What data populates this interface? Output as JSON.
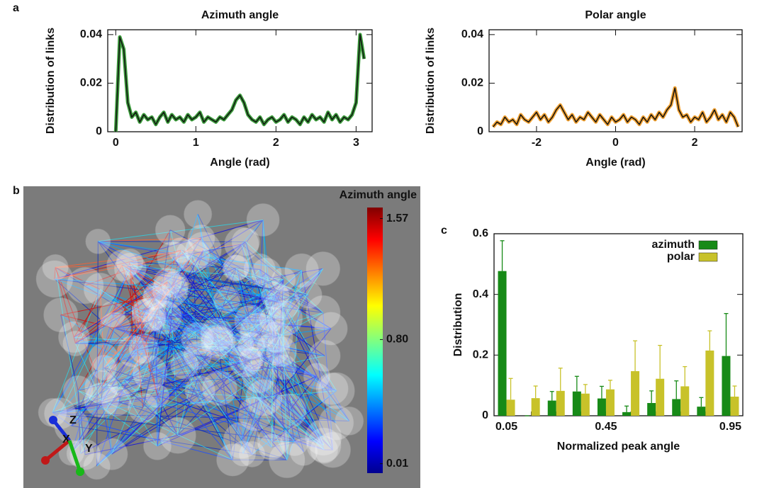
{
  "figure": {
    "panel_labels": [
      "a",
      "b",
      "c"
    ]
  },
  "render": {
    "colorbar": {
      "title": "Azimuth angle",
      "clim": [
        -0.05,
        1.64
      ],
      "ticks": [
        1.57,
        {
          "value": 0.8,
          "label": "0.80"
        },
        0.01
      ]
    },
    "triad_labels": [
      "Z",
      "X",
      "Y"
    ]
  },
  "chart_data": [
    {
      "type": "line",
      "title": "Azimuth angle",
      "x_label": "Angle (rad)",
      "y_label": "Distribution of links",
      "x": [
        0,
        0.05,
        0.1,
        0.15,
        0.2,
        0.25,
        0.3,
        0.35,
        0.4,
        0.45,
        0.5,
        0.55,
        0.6,
        0.65,
        0.7,
        0.75,
        0.8,
        0.85,
        0.9,
        0.95,
        1,
        1.05,
        1.1,
        1.15,
        1.2,
        1.25,
        1.3,
        1.35,
        1.4,
        1.45,
        1.5,
        1.55,
        1.6,
        1.65,
        1.7,
        1.75,
        1.8,
        1.85,
        1.9,
        1.95,
        2,
        2.05,
        2.1,
        2.15,
        2.2,
        2.25,
        2.3,
        2.35,
        2.4,
        2.45,
        2.5,
        2.55,
        2.6,
        2.65,
        2.7,
        2.75,
        2.8,
        2.85,
        2.9,
        2.95,
        3,
        3.05,
        3.1
      ],
      "series": [
        {
          "color": "#111111",
          "band_color": "#3a9a3a",
          "values": [
            0,
            0.039,
            0.034,
            0.012,
            0.006,
            0.008,
            0.004,
            0.007,
            0.005,
            0.006,
            0.003,
            0.006,
            0.008,
            0.004,
            0.007,
            0.005,
            0.006,
            0.004,
            0.007,
            0.005,
            0.006,
            0.008,
            0.004,
            0.006,
            0.005,
            0.004,
            0.006,
            0.005,
            0.007,
            0.009,
            0.013,
            0.015,
            0.012,
            0.007,
            0.005,
            0.004,
            0.006,
            0.003,
            0.005,
            0.006,
            0.004,
            0.005,
            0.007,
            0.004,
            0.006,
            0.005,
            0.003,
            0.006,
            0.004,
            0.007,
            0.005,
            0.006,
            0.004,
            0.008,
            0.005,
            0.007,
            0.004,
            0.006,
            0.005,
            0.007,
            0.012,
            0.04,
            0.03
          ]
        }
      ],
      "xlim": [
        -0.1,
        3.2
      ],
      "xticks": [
        0,
        1,
        2,
        3
      ],
      "ylim": [
        0,
        0.042
      ],
      "yticks": [
        0,
        0.02,
        0.04
      ]
    },
    {
      "type": "line",
      "title": "Polar angle",
      "x_label": "Angle (rad)",
      "y_label": "Distribution of links",
      "x": [
        -3.1,
        -3,
        -2.9,
        -2.8,
        -2.7,
        -2.6,
        -2.5,
        -2.4,
        -2.3,
        -2.2,
        -2.1,
        -2,
        -1.9,
        -1.8,
        -1.7,
        -1.6,
        -1.5,
        -1.4,
        -1.3,
        -1.2,
        -1.1,
        -1,
        -0.9,
        -0.8,
        -0.7,
        -0.6,
        -0.5,
        -0.4,
        -0.3,
        -0.2,
        -0.1,
        0,
        0.1,
        0.2,
        0.3,
        0.4,
        0.5,
        0.6,
        0.7,
        0.8,
        0.9,
        1,
        1.1,
        1.2,
        1.3,
        1.4,
        1.5,
        1.6,
        1.7,
        1.8,
        1.9,
        2,
        2.1,
        2.2,
        2.3,
        2.4,
        2.5,
        2.6,
        2.7,
        2.8,
        2.9,
        3,
        3.1
      ],
      "series": [
        {
          "color": "#111111",
          "band_color": "#f0a030",
          "values": [
            0.002,
            0.004,
            0.003,
            0.006,
            0.004,
            0.005,
            0.003,
            0.007,
            0.005,
            0.004,
            0.006,
            0.008,
            0.005,
            0.007,
            0.004,
            0.006,
            0.009,
            0.011,
            0.008,
            0.005,
            0.007,
            0.004,
            0.006,
            0.005,
            0.008,
            0.006,
            0.004,
            0.007,
            0.005,
            0.003,
            0.006,
            0.004,
            0.005,
            0.007,
            0.004,
            0.006,
            0.005,
            0.003,
            0.006,
            0.004,
            0.007,
            0.005,
            0.008,
            0.006,
            0.009,
            0.011,
            0.018,
            0.009,
            0.006,
            0.007,
            0.004,
            0.006,
            0.005,
            0.008,
            0.004,
            0.006,
            0.009,
            0.005,
            0.007,
            0.004,
            0.008,
            0.006,
            0.002
          ]
        }
      ],
      "xlim": [
        -3.2,
        3.2
      ],
      "xticks": [
        -2,
        0,
        2
      ],
      "ylim": [
        0,
        0.042
      ],
      "yticks": [
        0,
        0.02,
        0.04
      ]
    },
    {
      "type": "bar",
      "x_label": "Normalized peak angle",
      "y_label": "Distribution",
      "categories": [
        "0.05",
        null,
        null,
        null,
        "0.45",
        null,
        null,
        null,
        null,
        "0.95"
      ],
      "series": [
        {
          "name": "azimuth",
          "color": "#178a17",
          "values": [
            0.477,
            0,
            0.05,
            0.08,
            0.057,
            0.012,
            0.042,
            0.055,
            0.03,
            0.197
          ],
          "errors": [
            0.1,
            0,
            0.03,
            0.05,
            0.04,
            0.02,
            0.04,
            0.06,
            0.03,
            0.14
          ]
        },
        {
          "name": "polar",
          "color": "#c8c22a",
          "values": [
            0.053,
            0.058,
            0.082,
            0.073,
            0.087,
            0.147,
            0.122,
            0.097,
            0.215,
            0.063
          ],
          "errors": [
            0.07,
            0.04,
            0.075,
            0.03,
            0.03,
            0.1,
            0.11,
            0.065,
            0.065,
            0.035
          ]
        }
      ],
      "ylim": [
        0,
        0.6
      ],
      "yticks": [
        0,
        0.2,
        0.4,
        0.6
      ],
      "legend": "upper right"
    }
  ]
}
